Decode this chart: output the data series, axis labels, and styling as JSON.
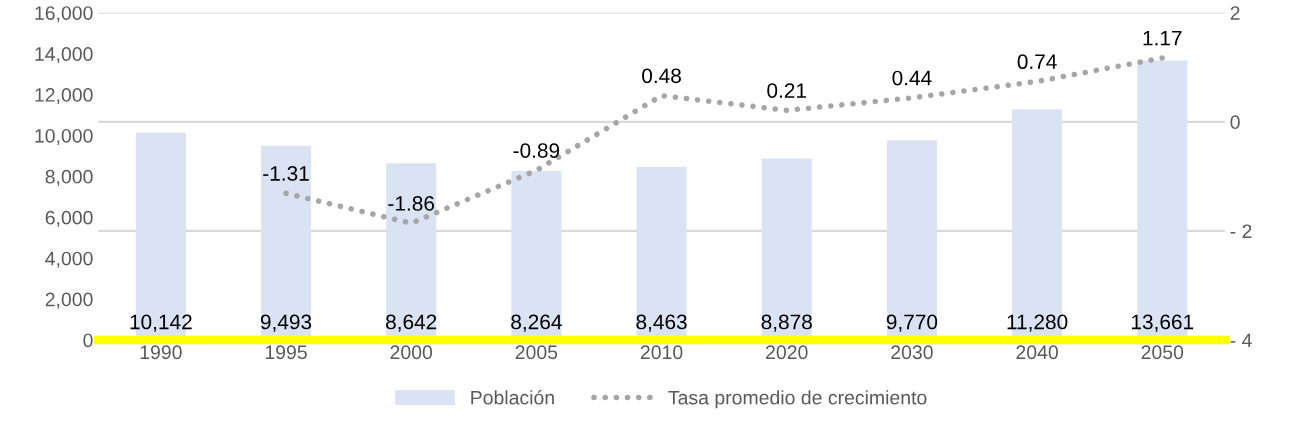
{
  "chart_data": {
    "type": "bar",
    "categories": [
      "1990",
      "1995",
      "2000",
      "2005",
      "2010",
      "2020",
      "2030",
      "2040",
      "2050"
    ],
    "series": [
      {
        "name": "Población",
        "color": "#dae3f3",
        "values": [
          10142,
          9493,
          8642,
          8264,
          8463,
          8878,
          9770,
          11280,
          13661
        ],
        "value_labels": [
          "10,142",
          "9,493",
          "8,642",
          "8,264",
          "8,463",
          "8,878",
          "9,770",
          "11,280",
          "13,661"
        ]
      },
      {
        "name": "Tasa promedio de crecimiento",
        "type": "line",
        "axis": "y2",
        "color": "#a6a6a6",
        "line_style": "dotted",
        "values": [
          null,
          -1.31,
          -1.86,
          -0.89,
          0.48,
          0.21,
          0.44,
          0.74,
          1.17
        ],
        "value_labels": [
          null,
          "-1.31",
          "-1.86",
          "-0.89",
          "0.48",
          "0.21",
          "0.44",
          "0.74",
          "1.17"
        ]
      }
    ],
    "ylim": [
      0,
      16000
    ],
    "yticks": [
      {
        "value": 0,
        "label": "0"
      },
      {
        "value": 2000,
        "label": "2,000"
      },
      {
        "value": 4000,
        "label": "4,000"
      },
      {
        "value": 6000,
        "label": "6,000"
      },
      {
        "value": 8000,
        "label": "8,000"
      },
      {
        "value": 10000,
        "label": "10,000"
      },
      {
        "value": 12000,
        "label": "12,000"
      },
      {
        "value": 14000,
        "label": "14,000"
      },
      {
        "value": 16000,
        "label": "16,000"
      }
    ],
    "y2lim": [
      -4,
      2
    ],
    "y2ticks": [
      {
        "value": -4,
        "label": "- 4"
      },
      {
        "value": -2,
        "label": "- 2"
      },
      0,
      2
    ],
    "grid": "y2",
    "legend": "bottom",
    "marker": "none"
  }
}
